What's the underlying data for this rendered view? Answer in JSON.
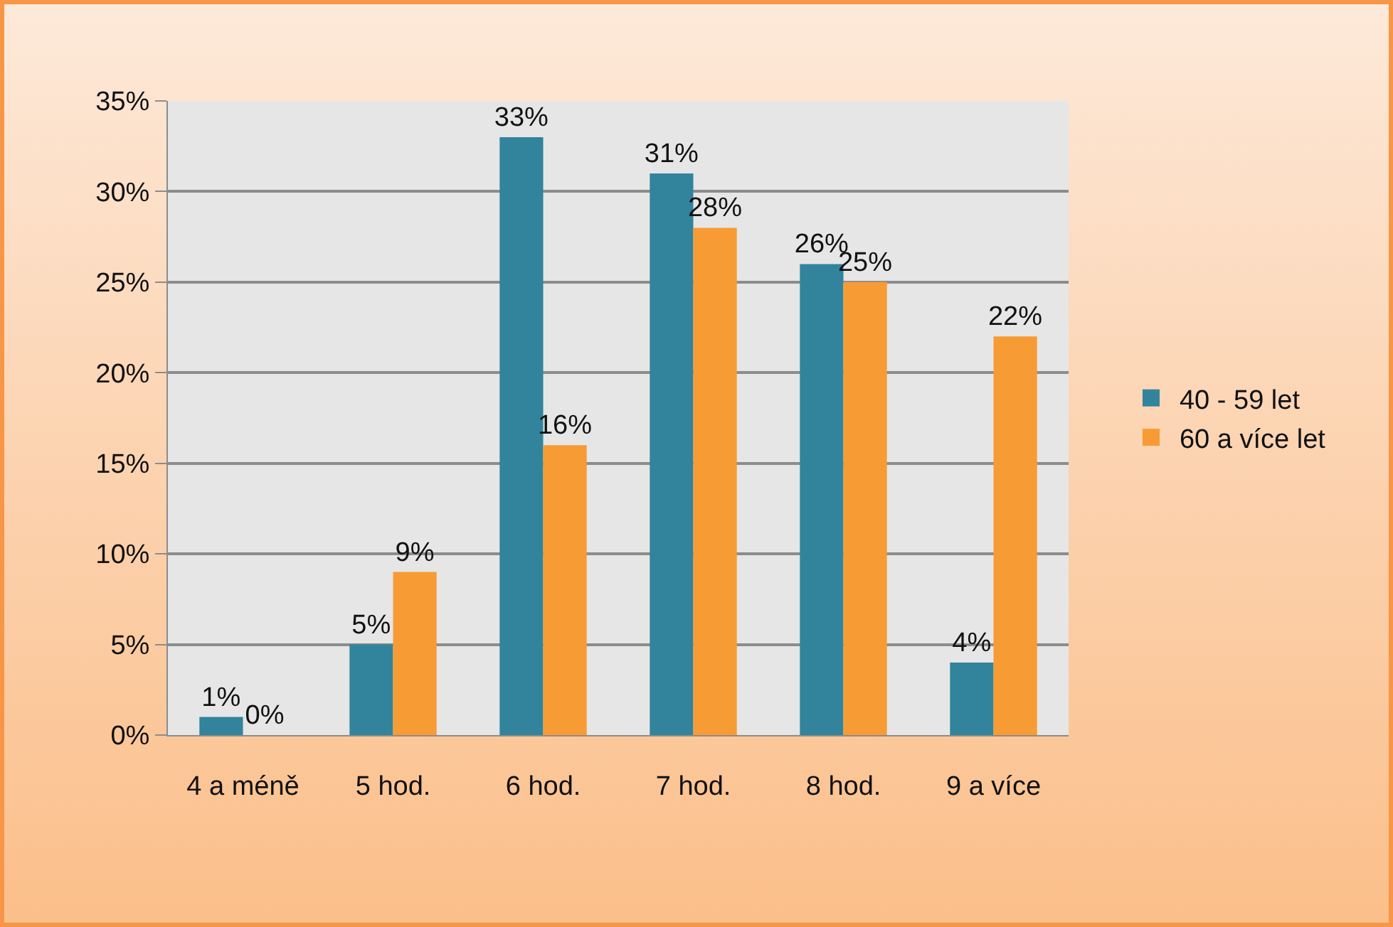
{
  "chart_data": {
    "type": "bar",
    "categories": [
      "4 a méně",
      "5 hod.",
      "6 hod.",
      "7 hod.",
      "8 hod.",
      "9 a více"
    ],
    "series": [
      {
        "name": "40 - 59 let",
        "color": "#31849b",
        "values": [
          1,
          5,
          33,
          31,
          26,
          4
        ],
        "value_labels": [
          "1%",
          "5%",
          "33%",
          "31%",
          "26%",
          "4%"
        ]
      },
      {
        "name": "60 a více let",
        "color": "#f79b35",
        "values": [
          0,
          9,
          16,
          28,
          25,
          22
        ],
        "value_labels": [
          "0%",
          "9%",
          "16%",
          "28%",
          "25%",
          "22%"
        ]
      }
    ],
    "ylim": [
      0,
      35
    ],
    "yticks": [
      {
        "value": 0,
        "label": "0%"
      },
      {
        "value": 5,
        "label": "5%"
      },
      {
        "value": 10,
        "label": "10%"
      },
      {
        "value": 15,
        "label": "15%"
      },
      {
        "value": 20,
        "label": "20%"
      },
      {
        "value": 25,
        "label": "25%"
      },
      {
        "value": 30,
        "label": "30%"
      },
      {
        "value": 35,
        "label": "35%"
      }
    ],
    "grid": "y",
    "legend": "right"
  }
}
